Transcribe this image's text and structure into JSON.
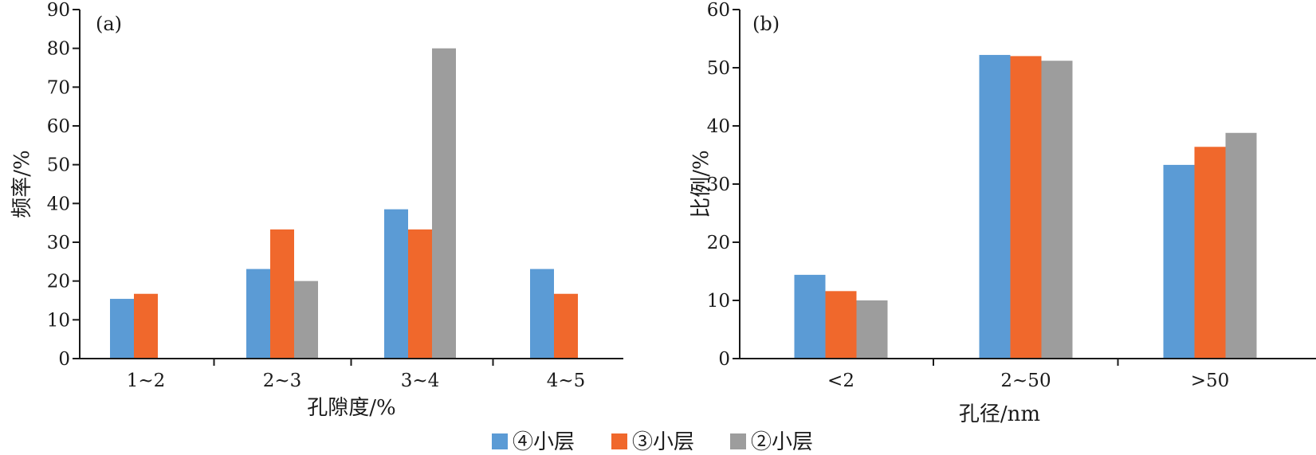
{
  "legend": {
    "items": [
      {
        "label": "④小层",
        "color": "#5b9bd5"
      },
      {
        "label": "③小层",
        "color": "#f0682c"
      },
      {
        "label": "②小层",
        "color": "#9d9d9d"
      }
    ]
  },
  "chart_data": [
    {
      "type": "bar",
      "panel_label": "(a)",
      "categories": [
        "1~2",
        "2~3",
        "3~4",
        "4~5"
      ],
      "xlabel": "孔隙度/%",
      "ylabel": "频率/%",
      "ylim": [
        0,
        90
      ],
      "yticks": [
        0,
        10,
        20,
        30,
        40,
        50,
        60,
        70,
        80,
        90
      ],
      "grid": false,
      "legend_position": "bottom-center",
      "series": [
        {
          "name": "④小层",
          "color": "#5b9bd5",
          "values": [
            15.4,
            23.1,
            38.5,
            23.1
          ]
        },
        {
          "name": "③小层",
          "color": "#f0682c",
          "values": [
            16.7,
            33.3,
            33.3,
            16.7
          ]
        },
        {
          "name": "②小层",
          "color": "#9d9d9d",
          "values": [
            0,
            20,
            80,
            0
          ]
        }
      ]
    },
    {
      "type": "bar",
      "panel_label": "(b)",
      "categories": [
        "<2",
        "2~50",
        ">50"
      ],
      "xlabel": "孔径/nm",
      "ylabel": "比例/%",
      "ylim": [
        0,
        60
      ],
      "yticks": [
        0,
        10,
        20,
        30,
        40,
        50,
        60
      ],
      "grid": false,
      "legend_position": "bottom-center",
      "series": [
        {
          "name": "④小层",
          "color": "#5b9bd5",
          "values": [
            14.4,
            52.2,
            33.3
          ]
        },
        {
          "name": "③小层",
          "color": "#f0682c",
          "values": [
            11.6,
            52.0,
            36.4
          ]
        },
        {
          "name": "②小层",
          "color": "#9d9d9d",
          "values": [
            10.0,
            51.2,
            38.8
          ]
        }
      ]
    }
  ]
}
